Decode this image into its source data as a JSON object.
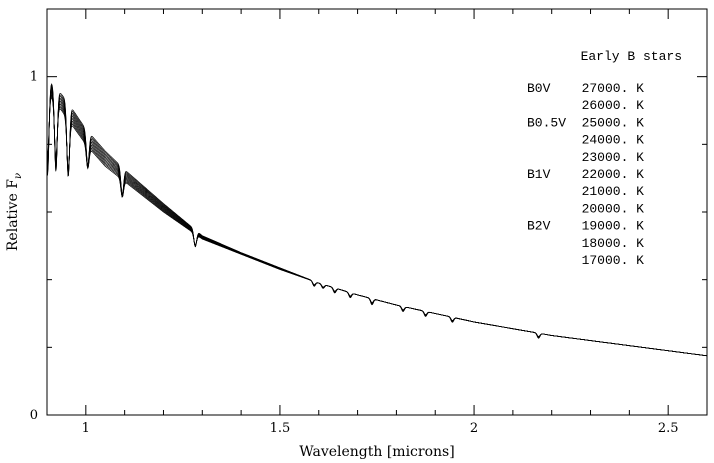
{
  "chart_data": {
    "type": "line",
    "title": "",
    "xlabel": "Wavelength [microns]",
    "ylabel": "Relative F",
    "ylabel_sub": "ν",
    "xlim": [
      0.9,
      2.6
    ],
    "ylim": [
      0,
      1.2
    ],
    "x_ticks": [
      {
        "value": 1,
        "label": "1"
      },
      {
        "value": 1.5,
        "label": "1.5"
      },
      {
        "value": 2,
        "label": "2"
      },
      {
        "value": 2.5,
        "label": "2.5"
      }
    ],
    "y_ticks": [
      {
        "value": 0,
        "label": "0"
      },
      {
        "value": 1,
        "label": "1"
      }
    ],
    "x_minor_step": 0.1,
    "y_minor_step": 0.2,
    "grid": false,
    "legend": {
      "position": "top-right",
      "title": "Early B stars",
      "entries": [
        {
          "type": "B0V",
          "temp": "27000. K"
        },
        {
          "type": "",
          "temp": "26000. K"
        },
        {
          "type": "B0.5V",
          "temp": "25000. K"
        },
        {
          "type": "",
          "temp": "24000. K"
        },
        {
          "type": "",
          "temp": "23000. K"
        },
        {
          "type": "B1V",
          "temp": "22000. K"
        },
        {
          "type": "",
          "temp": "21000. K"
        },
        {
          "type": "",
          "temp": "20000. K"
        },
        {
          "type": "B2V",
          "temp": "19000. K"
        },
        {
          "type": "",
          "temp": "18000. K"
        },
        {
          "type": "",
          "temp": "17000. K"
        }
      ]
    },
    "continuum": {
      "x": [
        0.9,
        0.95,
        1.0,
        1.05,
        1.1,
        1.2,
        1.3,
        1.4,
        1.5,
        1.6,
        1.7,
        1.8,
        1.9,
        2.0,
        2.1,
        2.2,
        2.3,
        2.4,
        2.5,
        2.6
      ],
      "y_hot": [
        1.0,
        0.93,
        0.845,
        0.78,
        0.725,
        0.625,
        0.53,
        0.48,
        0.435,
        0.39,
        0.355,
        0.325,
        0.3,
        0.275,
        0.255,
        0.235,
        0.22,
        0.205,
        0.19,
        0.175
      ],
      "y_cool": [
        0.96,
        0.88,
        0.8,
        0.735,
        0.69,
        0.6,
        0.52,
        0.475,
        0.43,
        0.39,
        0.355,
        0.325,
        0.3,
        0.275,
        0.255,
        0.235,
        0.22,
        0.205,
        0.19,
        0.175
      ]
    },
    "absorption_lines": [
      {
        "x": 0.9015,
        "depth": 0.29
      },
      {
        "x": 0.9229,
        "depth": 0.25
      },
      {
        "x": 0.9546,
        "depth": 0.22
      },
      {
        "x": 1.0049,
        "depth": 0.1
      },
      {
        "x": 1.0938,
        "depth": 0.08
      },
      {
        "x": 1.2818,
        "depth": 0.05
      },
      {
        "x": 1.588,
        "depth": 0.015
      },
      {
        "x": 1.611,
        "depth": 0.012
      },
      {
        "x": 1.641,
        "depth": 0.015
      },
      {
        "x": 1.681,
        "depth": 0.015
      },
      {
        "x": 1.737,
        "depth": 0.018
      },
      {
        "x": 1.817,
        "depth": 0.015
      },
      {
        "x": 1.875,
        "depth": 0.015
      },
      {
        "x": 1.944,
        "depth": 0.015
      },
      {
        "x": 2.166,
        "depth": 0.015
      }
    ],
    "series_count": 11
  }
}
